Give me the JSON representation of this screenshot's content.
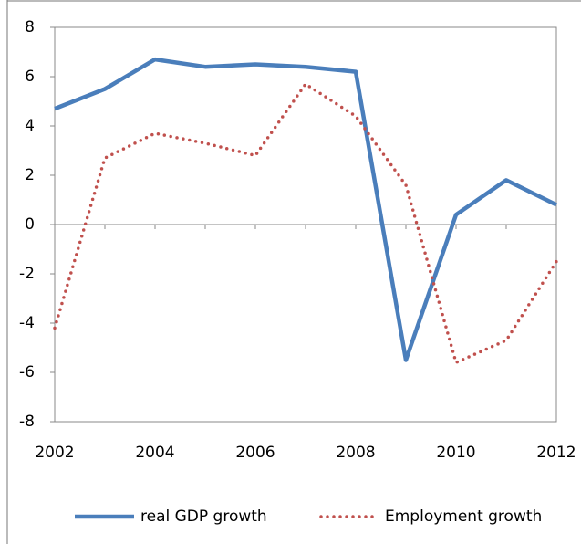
{
  "chart_data": {
    "type": "line",
    "x": [
      2002,
      2003,
      2004,
      2005,
      2006,
      2007,
      2008,
      2009,
      2010,
      2011,
      2012
    ],
    "series": [
      {
        "name": "real GDP growth",
        "color": "#4a7ebb",
        "style": "solid",
        "values": [
          4.7,
          5.5,
          6.7,
          6.4,
          6.5,
          6.4,
          6.2,
          -5.5,
          0.4,
          1.8,
          0.8
        ]
      },
      {
        "name": "Employment growth",
        "color": "#c0504d",
        "style": "dotted",
        "values": [
          -4.2,
          2.7,
          3.7,
          3.3,
          2.8,
          5.7,
          4.4,
          1.6,
          -5.6,
          -4.7,
          -1.5
        ]
      }
    ],
    "xlim": [
      2002,
      2012
    ],
    "xticks": [
      2002,
      2004,
      2006,
      2008,
      2010,
      2012
    ],
    "ylim": [
      -8,
      8
    ],
    "yticks": [
      8,
      6,
      4,
      2,
      0,
      -2,
      -4,
      -6,
      -8
    ],
    "legend": "bottom"
  }
}
